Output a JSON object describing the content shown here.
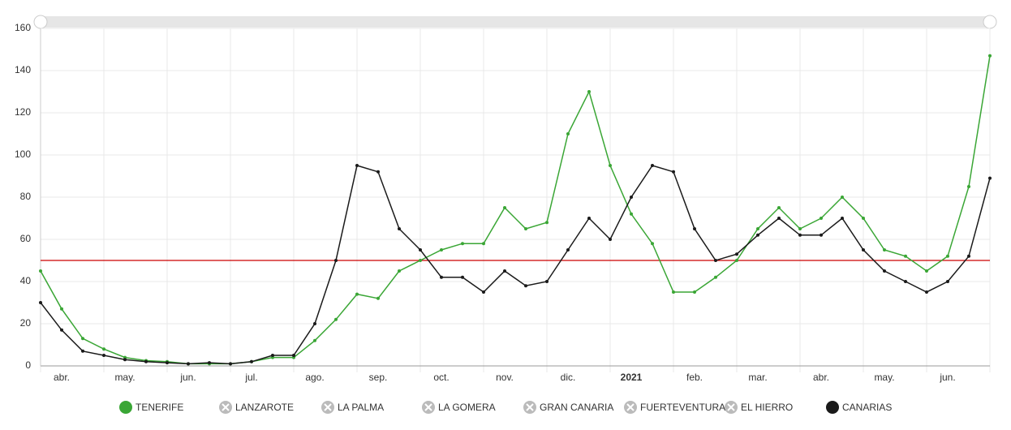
{
  "chart_data": {
    "type": "line",
    "categories": [
      null,
      "abr.",
      null,
      null,
      "may.",
      null,
      null,
      "jun.",
      null,
      null,
      "jul.",
      null,
      null,
      "ago.",
      null,
      null,
      "sep.",
      null,
      null,
      "oct.",
      null,
      null,
      "nov.",
      null,
      null,
      "dic.",
      null,
      null,
      "2021",
      null,
      null,
      "feb.",
      null,
      null,
      "mar.",
      null,
      null,
      "abr.",
      null,
      null,
      "may.",
      null,
      null,
      "jun.",
      null,
      null
    ],
    "series": [
      {
        "name": "TENERIFE",
        "color": "#3aa635",
        "hidden": false,
        "values": [
          45,
          27,
          13,
          8,
          4,
          2.5,
          2,
          1,
          1,
          1,
          2,
          4,
          4,
          12,
          22,
          34,
          32,
          45,
          50,
          55,
          58,
          58,
          75,
          65,
          68,
          110,
          130,
          95,
          72,
          58,
          35,
          35,
          42,
          50,
          65,
          75,
          65,
          70,
          80,
          70,
          55,
          52,
          45,
          52,
          85,
          147
        ]
      },
      {
        "name": "LANZAROTE",
        "color": "#bbbbbb",
        "hidden": true,
        "values": null
      },
      {
        "name": "LA PALMA",
        "color": "#bbbbbb",
        "hidden": true,
        "values": null
      },
      {
        "name": "LA GOMERA",
        "color": "#bbbbbb",
        "hidden": true,
        "values": null
      },
      {
        "name": "GRAN CANARIA",
        "color": "#bbbbbb",
        "hidden": true,
        "values": null
      },
      {
        "name": "FUERTEVENTURA",
        "color": "#bbbbbb",
        "hidden": true,
        "values": null
      },
      {
        "name": "EL HIERRO",
        "color": "#bbbbbb",
        "hidden": true,
        "values": null
      },
      {
        "name": "CANARIAS",
        "color": "#1a1a1a",
        "hidden": false,
        "values": [
          30,
          17,
          7,
          5,
          3,
          2,
          1.5,
          1,
          1.5,
          1,
          2,
          5,
          5,
          20,
          50,
          95,
          92,
          65,
          55,
          42,
          42,
          35,
          45,
          38,
          40,
          55,
          70,
          60,
          80,
          95,
          92,
          65,
          50,
          53,
          62,
          70,
          62,
          62,
          70,
          55,
          45,
          40,
          35,
          40,
          52,
          89
        ]
      }
    ],
    "ylim": [
      0,
      160
    ],
    "yticks": [
      0,
      20,
      40,
      60,
      80,
      100,
      120,
      140,
      160
    ],
    "grid": true,
    "reference_line": {
      "value": 50,
      "color": "#cc0000"
    },
    "bold_categories": [
      "2021"
    ]
  }
}
